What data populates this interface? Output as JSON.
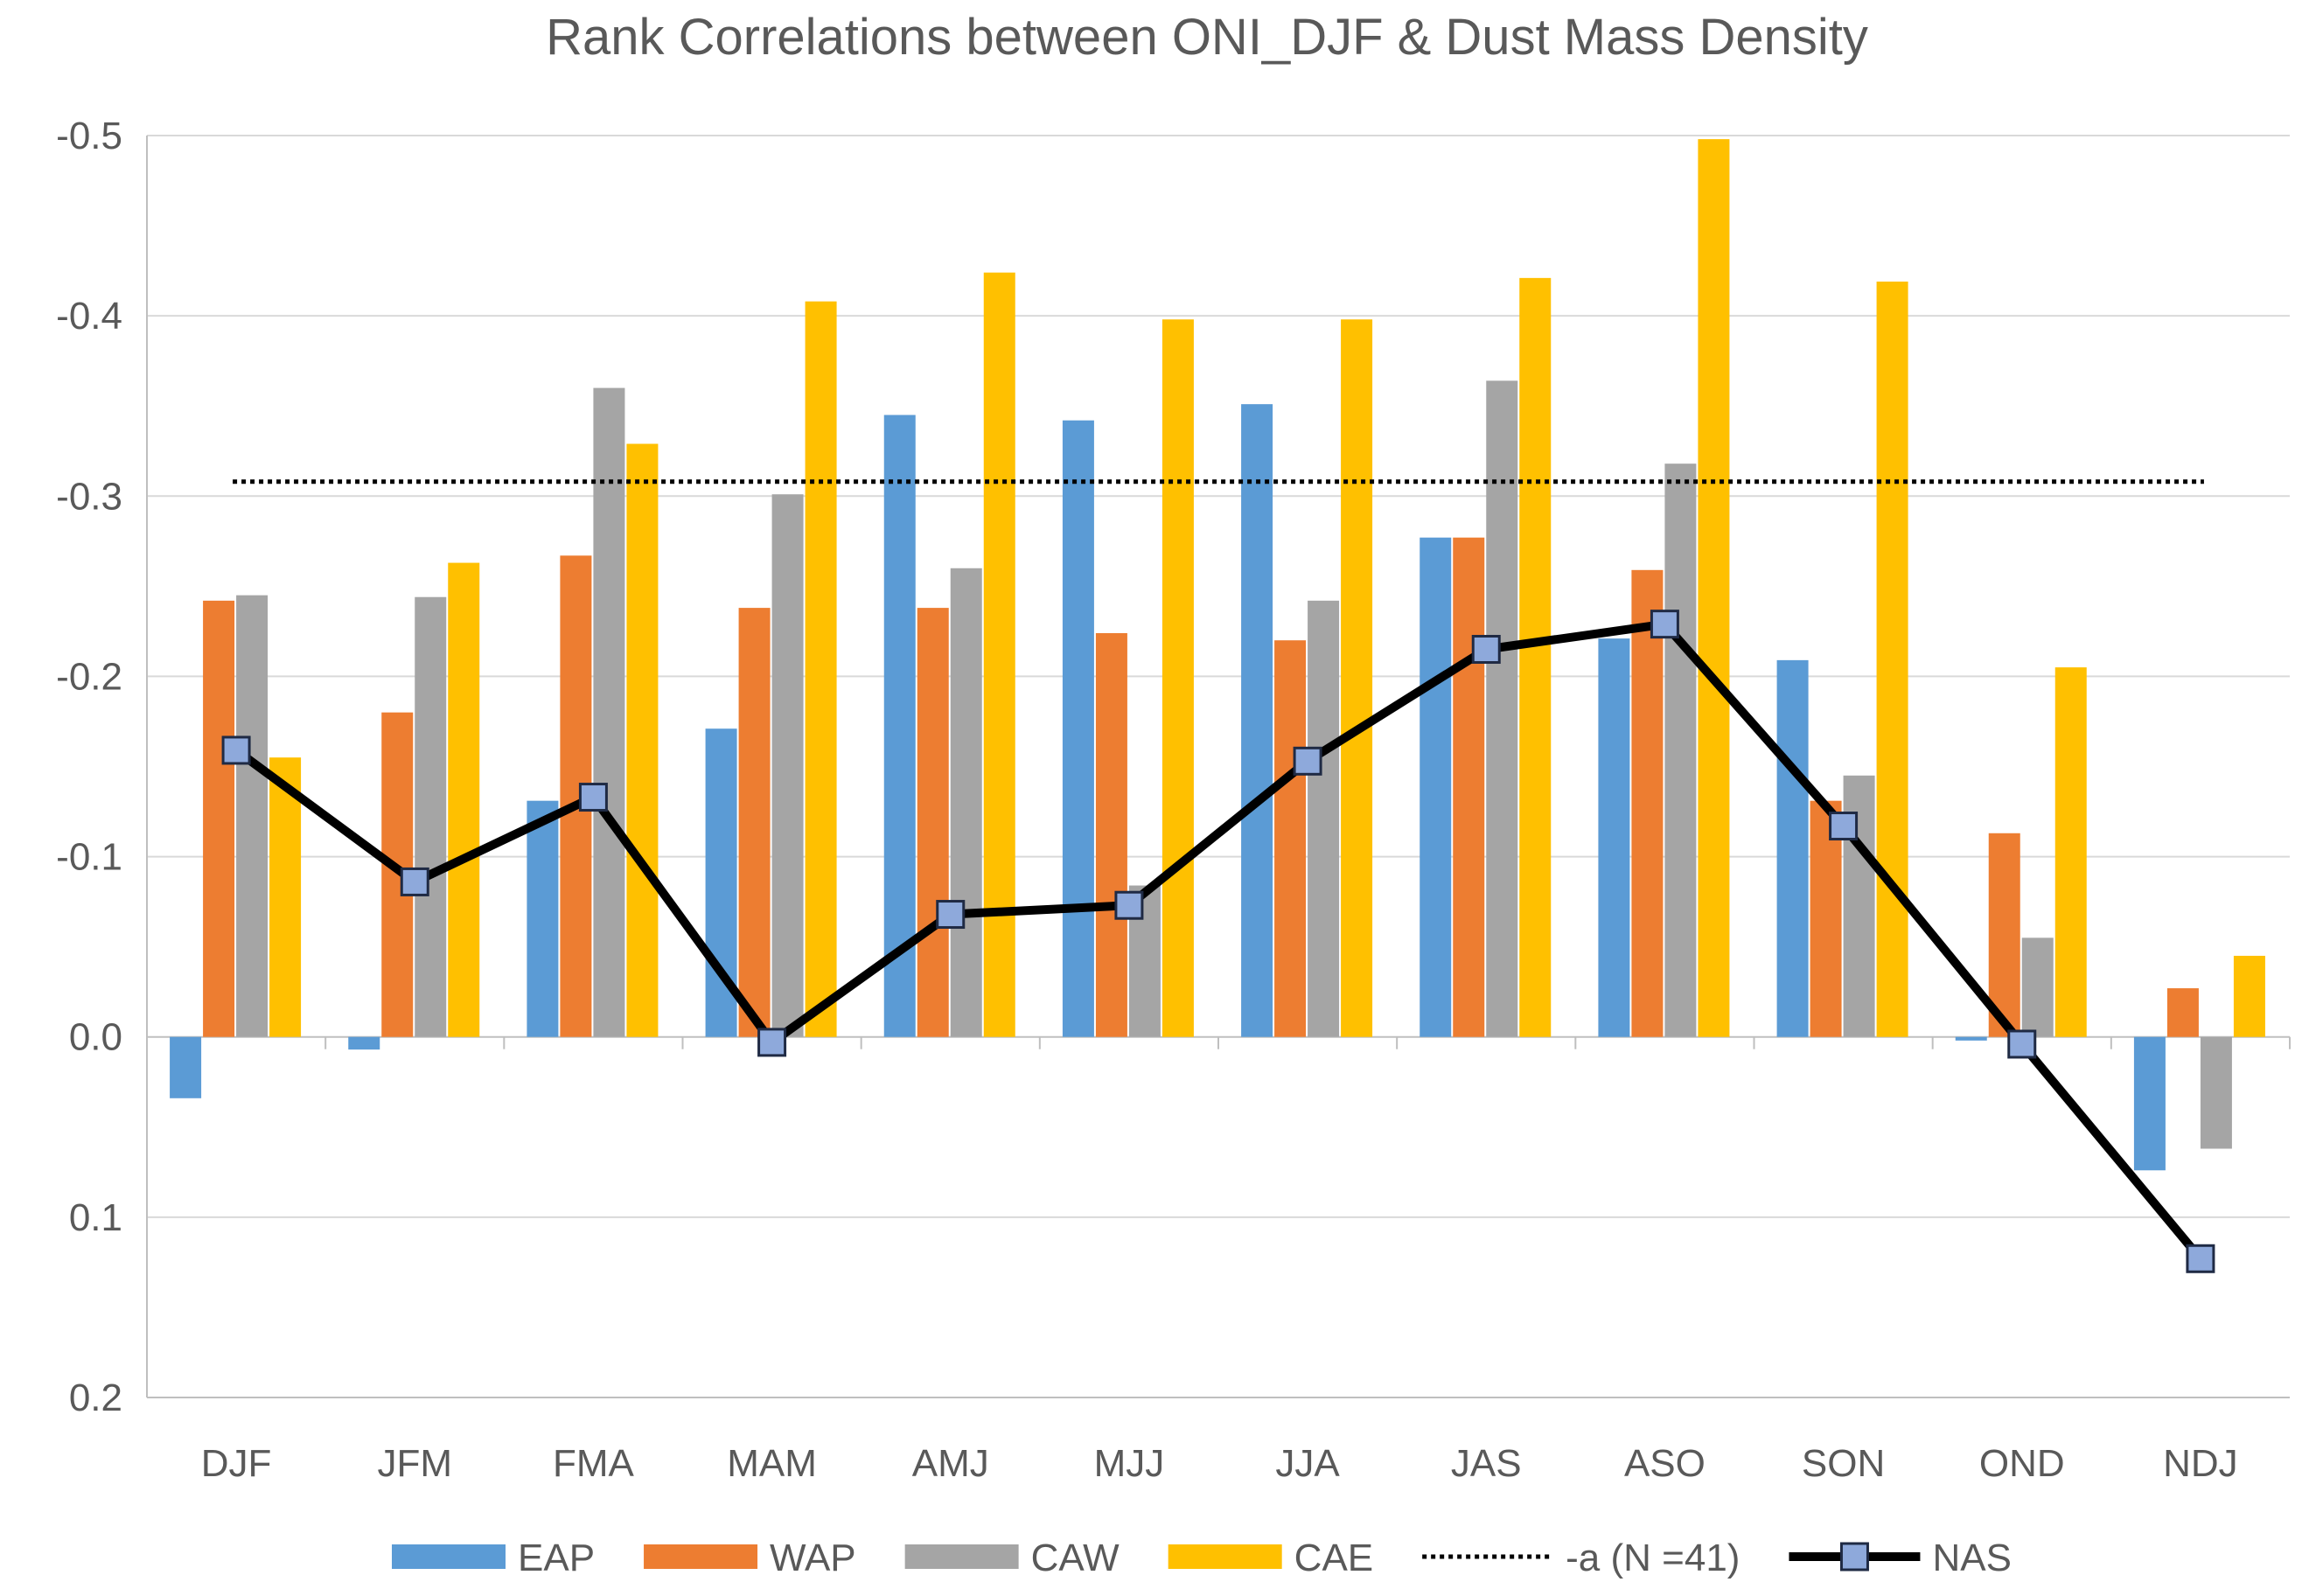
{
  "chart_data": {
    "type": "bar",
    "title": "Rank Correlations between ONI_DJF & Dust Mass Density",
    "xlabel": "",
    "ylabel": "",
    "ylim": [
      0.2,
      -0.5
    ],
    "y_inverted": true,
    "yticks": [
      -0.5,
      -0.4,
      -0.3,
      -0.2,
      -0.1,
      0.0,
      0.1,
      0.2
    ],
    "ytick_labels": [
      "-0.5",
      "-0.4",
      "-0.3",
      "-0.2",
      "-0.1",
      "0.0",
      "0.1",
      "0.2"
    ],
    "grid": true,
    "legend_position": "bottom",
    "categories": [
      "DJF",
      "JFM",
      "FMA",
      "MAM",
      "AMJ",
      "MJJ",
      "JJA",
      "JAS",
      "ASO",
      "SON",
      "OND",
      "NDJ"
    ],
    "series": [
      {
        "name": "EAP",
        "kind": "bar",
        "color": "#5B9BD5",
        "values": [
          0.034,
          0.007,
          -0.131,
          -0.171,
          -0.345,
          -0.342,
          -0.351,
          -0.277,
          -0.221,
          -0.209,
          0.002,
          0.074
        ]
      },
      {
        "name": "WAP",
        "kind": "bar",
        "color": "#ED7D31",
        "values": [
          -0.242,
          -0.18,
          -0.267,
          -0.238,
          -0.238,
          -0.224,
          -0.22,
          -0.277,
          -0.259,
          -0.131,
          -0.113,
          -0.027
        ]
      },
      {
        "name": "CAW",
        "kind": "bar",
        "color": "#A5A5A5",
        "values": [
          -0.245,
          -0.244,
          -0.36,
          -0.301,
          -0.26,
          -0.084,
          -0.242,
          -0.364,
          -0.318,
          -0.145,
          -0.055,
          0.062
        ]
      },
      {
        "name": "CAE",
        "kind": "bar",
        "color": "#FFC000",
        "values": [
          -0.155,
          -0.263,
          -0.329,
          -0.408,
          -0.424,
          -0.398,
          -0.398,
          -0.421,
          -0.498,
          -0.419,
          -0.205,
          -0.045
        ]
      },
      {
        "name": "-a (N =41)",
        "kind": "dotted-line",
        "color": "#000000",
        "values": [
          -0.308,
          -0.308,
          -0.308,
          -0.308,
          -0.308,
          -0.308,
          -0.308,
          -0.308,
          -0.308,
          -0.308,
          -0.308,
          -0.308
        ]
      },
      {
        "name": "NAS",
        "kind": "line-marker",
        "color": "#000000",
        "marker_color": "#8EA9DB",
        "values": [
          -0.159,
          -0.086,
          -0.133,
          0.003,
          -0.068,
          -0.073,
          -0.153,
          -0.215,
          -0.229,
          -0.117,
          0.004,
          0.123
        ]
      }
    ]
  }
}
